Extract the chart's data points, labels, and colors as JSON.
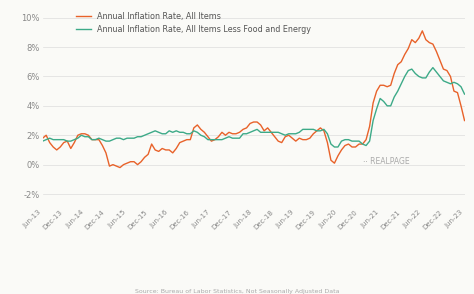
{
  "source_text": "Source: Bureau of Labor Statistics, Not Seasonally Adjusted Data",
  "realpage_text": "·· REALPAGE",
  "legend": [
    {
      "label": "Annual Inflation Rate, All Items",
      "color": "#E8622A"
    },
    {
      "label": "Annual Inflation Rate, All Items Less Food and Energy",
      "color": "#3DAA88"
    }
  ],
  "ylim": [
    -2.8,
    10.8
  ],
  "yticks": [
    -2,
    0,
    2,
    4,
    6,
    8,
    10
  ],
  "ytick_labels": [
    "-2%",
    "0%",
    "2%",
    "4%",
    "6%",
    "8%",
    "10%"
  ],
  "bg_color": "#FAFAF7",
  "line_color_all": "#E8622A",
  "line_color_core": "#3DAA88",
  "all_items": [
    1.8,
    2.0,
    1.5,
    1.2,
    1.0,
    1.2,
    1.5,
    1.6,
    1.1,
    1.5,
    2.0,
    2.1,
    2.1,
    2.0,
    1.7,
    1.7,
    1.7,
    1.3,
    0.8,
    -0.1,
    0.0,
    -0.1,
    -0.2,
    0.0,
    0.1,
    0.2,
    0.2,
    0.0,
    0.2,
    0.5,
    0.7,
    1.4,
    1.0,
    0.9,
    1.1,
    1.0,
    1.0,
    0.8,
    1.1,
    1.5,
    1.6,
    1.7,
    1.7,
    2.5,
    2.7,
    2.4,
    2.2,
    1.9,
    1.6,
    1.7,
    1.9,
    2.2,
    2.0,
    2.2,
    2.1,
    2.1,
    2.2,
    2.4,
    2.5,
    2.8,
    2.9,
    2.9,
    2.7,
    2.3,
    2.5,
    2.2,
    1.9,
    1.6,
    1.5,
    1.9,
    2.0,
    1.8,
    1.6,
    1.8,
    1.7,
    1.7,
    1.8,
    2.1,
    2.3,
    2.5,
    2.3,
    1.5,
    0.3,
    0.1,
    0.6,
    1.0,
    1.3,
    1.4,
    1.2,
    1.2,
    1.4,
    1.4,
    1.7,
    2.6,
    4.2,
    5.0,
    5.4,
    5.4,
    5.3,
    5.4,
    6.2,
    6.8,
    7.0,
    7.5,
    7.9,
    8.5,
    8.3,
    8.6,
    9.1,
    8.5,
    8.3,
    8.2,
    7.7,
    7.1,
    6.5,
    6.4,
    6.0,
    5.0,
    4.9,
    4.0,
    3.0
  ],
  "core_items": [
    1.6,
    1.7,
    1.8,
    1.7,
    1.7,
    1.7,
    1.7,
    1.6,
    1.6,
    1.7,
    1.8,
    2.0,
    1.9,
    1.9,
    1.7,
    1.7,
    1.8,
    1.7,
    1.6,
    1.6,
    1.7,
    1.8,
    1.8,
    1.7,
    1.8,
    1.8,
    1.8,
    1.9,
    1.9,
    2.0,
    2.1,
    2.2,
    2.3,
    2.2,
    2.1,
    2.1,
    2.3,
    2.2,
    2.3,
    2.2,
    2.2,
    2.1,
    2.1,
    2.3,
    2.2,
    2.0,
    1.9,
    1.7,
    1.7,
    1.7,
    1.7,
    1.7,
    1.8,
    1.9,
    1.8,
    1.8,
    1.8,
    2.1,
    2.1,
    2.2,
    2.3,
    2.4,
    2.2,
    2.2,
    2.2,
    2.2,
    2.2,
    2.2,
    2.1,
    2.0,
    2.1,
    2.1,
    2.1,
    2.2,
    2.4,
    2.4,
    2.4,
    2.4,
    2.3,
    2.3,
    2.4,
    2.1,
    1.4,
    1.2,
    1.2,
    1.6,
    1.7,
    1.7,
    1.6,
    1.6,
    1.6,
    1.4,
    1.3,
    1.6,
    3.0,
    3.8,
    4.5,
    4.3,
    4.0,
    4.0,
    4.6,
    5.0,
    5.5,
    6.0,
    6.4,
    6.5,
    6.2,
    6.0,
    5.9,
    5.9,
    6.3,
    6.6,
    6.3,
    6.0,
    5.7,
    5.6,
    5.5,
    5.6,
    5.5,
    5.3,
    4.8
  ],
  "xtick_positions": [
    0,
    6,
    12,
    18,
    24,
    30,
    36,
    42,
    48,
    54,
    60,
    66,
    72,
    78,
    84,
    90,
    96,
    102,
    108,
    114,
    120
  ],
  "xtick_labels": [
    "Jun-13",
    "Dec-13",
    "Jun-14",
    "Dec-14",
    "Jun-15",
    "Dec-15",
    "Jun-16",
    "Dec-16",
    "Jun-17",
    "Dec-17",
    "Jun-18",
    "Dec-18",
    "Jun-19",
    "Dec-19",
    "Jun-20",
    "Dec-20",
    "Jun-21",
    "Dec-21",
    "Jun-22",
    "Dec-22",
    "Jun-23"
  ]
}
